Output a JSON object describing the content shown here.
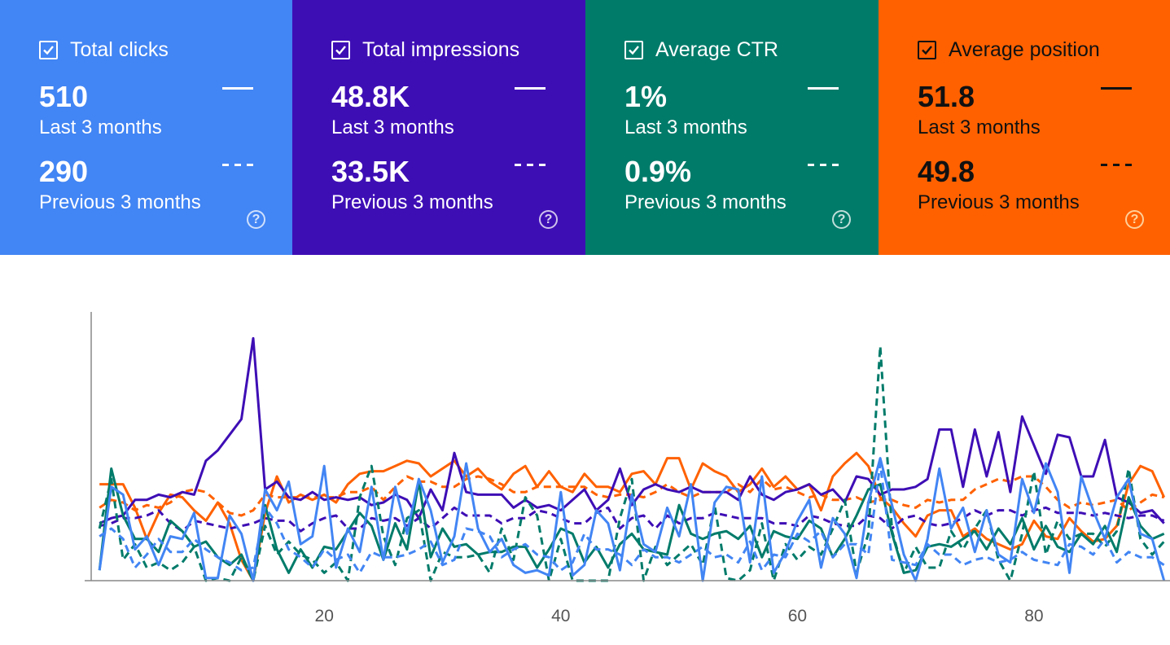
{
  "cards": [
    {
      "title": "Total clicks",
      "current_value": "510",
      "current_period": "Last 3 months",
      "previous_value": "290",
      "previous_period": "Previous 3 months",
      "help": "?",
      "color": "#4285f4",
      "checked": true
    },
    {
      "title": "Total impressions",
      "current_value": "48.8K",
      "current_period": "Last 3 months",
      "previous_value": "33.5K",
      "previous_period": "Previous 3 months",
      "help": "?",
      "color": "#3e0eb5",
      "checked": true
    },
    {
      "title": "Average CTR",
      "current_value": "1%",
      "current_period": "Last 3 months",
      "previous_value": "0.9%",
      "previous_period": "Previous 3 months",
      "help": "?",
      "color": "#007b6a",
      "checked": true
    },
    {
      "title": "Average position",
      "current_value": "51.8",
      "current_period": "Last 3 months",
      "previous_value": "49.8",
      "previous_period": "Previous 3 months",
      "help": "?",
      "color": "#ff6100",
      "checked": true
    }
  ],
  "chart_data": {
    "type": "line",
    "x": [
      1,
      2,
      3,
      4,
      5,
      6,
      7,
      8,
      9,
      10,
      11,
      12,
      13,
      14,
      15,
      16,
      17,
      18,
      19,
      20,
      21,
      22,
      23,
      24,
      25,
      26,
      27,
      28,
      29,
      30,
      31,
      32,
      33,
      34,
      35,
      36,
      37,
      38,
      39,
      40,
      41,
      42,
      43,
      44,
      45,
      46,
      47,
      48,
      49,
      50,
      51,
      52,
      53,
      54,
      55,
      56,
      57,
      58,
      59,
      60,
      61,
      62,
      63,
      64,
      65,
      66,
      67,
      68,
      69,
      70,
      71,
      72,
      73,
      74,
      75,
      76,
      77,
      78,
      79,
      80,
      81,
      82,
      83,
      84,
      85,
      86,
      87,
      88,
      89,
      90,
      91
    ],
    "x_ticks": [
      20,
      40,
      60,
      80
    ],
    "xlim": [
      0.3,
      91.5
    ],
    "ylim": [
      0,
      100
    ],
    "y_axis_labels_shown": false,
    "grid": false,
    "legend": "none",
    "series": [
      {
        "name": "Total clicks",
        "period": "Last 3 months",
        "style": "solid",
        "color": "#4285f4",
        "values": [
          4,
          36,
          33,
          12,
          17,
          6,
          17,
          16,
          26,
          1,
          1,
          25,
          18,
          0,
          35,
          27,
          38,
          14,
          17,
          44,
          5,
          20,
          11,
          36,
          8,
          36,
          18,
          39,
          27,
          7,
          17,
          45,
          20,
          11,
          16,
          6,
          3,
          4,
          2,
          34,
          2,
          6,
          27,
          22,
          4,
          33,
          14,
          11,
          28,
          17,
          37,
          0,
          30,
          36,
          35,
          7,
          40,
          3,
          11,
          23,
          31,
          5,
          24,
          18,
          1,
          30,
          47,
          29,
          10,
          0,
          16,
          43,
          20,
          28,
          11,
          27,
          10,
          7,
          39,
          26,
          45,
          34,
          3,
          40,
          27,
          16,
          32,
          39,
          18,
          16,
          0
        ]
      },
      {
        "name": "Total clicks",
        "period": "Previous 3 months",
        "style": "dashed",
        "color": "#4285f4",
        "values": [
          17,
          20,
          16,
          5,
          10,
          16,
          11,
          11,
          16,
          12,
          9,
          7,
          4,
          5,
          28,
          22,
          12,
          9,
          5,
          12,
          8,
          10,
          3,
          11,
          9,
          9,
          10,
          12,
          15,
          6,
          8,
          20,
          19,
          17,
          9,
          12,
          14,
          10,
          9,
          4,
          7,
          18,
          12,
          12,
          10,
          6,
          12,
          9,
          9,
          7,
          10,
          13,
          9,
          10,
          7,
          15,
          4,
          10,
          9,
          18,
          15,
          19,
          9,
          14,
          14,
          10,
          45,
          8,
          7,
          6,
          14,
          10,
          10,
          6,
          8,
          9,
          7,
          8,
          11,
          8,
          7,
          6,
          14,
          13,
          10,
          16,
          7,
          11,
          9,
          9,
          6
        ]
      },
      {
        "name": "Total impressions",
        "period": "Last 3 months",
        "style": "solid",
        "color": "#3e0eb5",
        "values": [
          22,
          24,
          25,
          31,
          31,
          33,
          32,
          34,
          33,
          46,
          50,
          56,
          62,
          93,
          35,
          38,
          32,
          31,
          34,
          31,
          32,
          31,
          32,
          29,
          30,
          33,
          31,
          24,
          35,
          27,
          49,
          34,
          33,
          33,
          33,
          28,
          31,
          28,
          29,
          27,
          31,
          35,
          27,
          31,
          43,
          29,
          35,
          37,
          35,
          34,
          36,
          34,
          34,
          34,
          31,
          40,
          33,
          31,
          34,
          35,
          37,
          33,
          35,
          30,
          40,
          39,
          33,
          35,
          35,
          36,
          39,
          58,
          58,
          36,
          58,
          40,
          57,
          34,
          63,
          52,
          41,
          56,
          55,
          40,
          40,
          54,
          32,
          30,
          26,
          27,
          22
        ]
      },
      {
        "name": "Total impressions",
        "period": "Previous 3 months",
        "style": "dashed",
        "color": "#3e0eb5",
        "values": [
          21,
          22,
          24,
          24,
          25,
          27,
          22,
          19,
          23,
          22,
          21,
          20,
          21,
          22,
          24,
          23,
          23,
          19,
          22,
          24,
          25,
          20,
          20,
          24,
          23,
          24,
          21,
          24,
          20,
          24,
          28,
          25,
          25,
          25,
          22,
          24,
          24,
          27,
          26,
          24,
          22,
          22,
          26,
          28,
          20,
          24,
          25,
          20,
          25,
          22,
          24,
          24,
          26,
          25,
          24,
          24,
          24,
          22,
          22,
          21,
          25,
          24,
          22,
          21,
          21,
          25,
          24,
          20,
          24,
          25,
          22,
          21,
          22,
          24,
          27,
          25,
          27,
          27,
          25,
          27,
          28,
          26,
          26,
          26,
          25,
          26,
          25,
          24,
          25,
          25,
          23
        ]
      },
      {
        "name": "Average CTR",
        "period": "Last 3 months",
        "style": "solid",
        "color": "#007b6a",
        "values": [
          4,
          43,
          25,
          16,
          16,
          11,
          23,
          19,
          13,
          15,
          9,
          6,
          10,
          0,
          29,
          12,
          3,
          12,
          5,
          13,
          12,
          19,
          26,
          21,
          8,
          22,
          12,
          38,
          9,
          20,
          13,
          14,
          10,
          11,
          11,
          13,
          13,
          5,
          12,
          20,
          18,
          7,
          13,
          5,
          14,
          18,
          12,
          11,
          10,
          29,
          18,
          16,
          18,
          19,
          16,
          21,
          9,
          19,
          17,
          16,
          23,
          20,
          9,
          16,
          25,
          35,
          37,
          18,
          3,
          4,
          13,
          14,
          13,
          16,
          19,
          12,
          20,
          14,
          24,
          12,
          21,
          13,
          11,
          18,
          14,
          21,
          11,
          32,
          21,
          16,
          18
        ]
      },
      {
        "name": "Average CTR",
        "period": "Previous 3 months",
        "style": "dashed",
        "color": "#007b6a",
        "values": [
          20,
          39,
          8,
          14,
          5,
          7,
          4,
          7,
          13,
          0,
          1,
          0,
          9,
          0,
          21,
          10,
          15,
          10,
          8,
          3,
          7,
          0,
          32,
          44,
          17,
          6,
          24,
          27,
          0,
          11,
          9,
          9,
          10,
          3,
          20,
          8,
          32,
          25,
          0,
          16,
          0,
          0,
          0,
          0,
          24,
          39,
          0,
          13,
          6,
          10,
          14,
          6,
          29,
          1,
          0,
          4,
          22,
          0,
          14,
          8,
          13,
          10,
          20,
          31,
          3,
          18,
          90,
          19,
          3,
          13,
          5,
          5,
          19,
          12,
          20,
          27,
          8,
          0,
          18,
          42,
          10,
          23,
          16,
          18,
          18,
          13,
          19,
          43,
          16,
          10,
          15
        ]
      },
      {
        "name": "Average position",
        "period": "Last 3 months",
        "style": "solid",
        "color": "#ff6100",
        "values": [
          37,
          37,
          37,
          28,
          16,
          26,
          33,
          32,
          27,
          23,
          30,
          22,
          8,
          0,
          26,
          40,
          30,
          33,
          31,
          33,
          30,
          37,
          41,
          42,
          42,
          44,
          46,
          45,
          40,
          43,
          46,
          40,
          43,
          38,
          35,
          41,
          44,
          36,
          42,
          36,
          34,
          41,
          36,
          36,
          34,
          41,
          42,
          37,
          47,
          47,
          35,
          45,
          42,
          40,
          34,
          37,
          43,
          36,
          40,
          35,
          37,
          27,
          40,
          45,
          49,
          44,
          32,
          28,
          22,
          17,
          25,
          27,
          27,
          17,
          20,
          16,
          14,
          12,
          14,
          23,
          17,
          16,
          24,
          19,
          15,
          16,
          21,
          37,
          44,
          42,
          32
        ]
      },
      {
        "name": "Average position",
        "period": "Previous 3 months",
        "style": "dashed",
        "color": "#ff6100",
        "values": [
          28,
          31,
          30,
          27,
          29,
          28,
          30,
          34,
          35,
          34,
          30,
          26,
          25,
          27,
          33,
          32,
          32,
          32,
          32,
          32,
          32,
          34,
          34,
          36,
          31,
          36,
          40,
          38,
          38,
          36,
          36,
          39,
          40,
          39,
          37,
          34,
          34,
          36,
          36,
          36,
          36,
          36,
          33,
          32,
          33,
          33,
          32,
          34,
          37,
          34,
          32,
          34,
          34,
          34,
          37,
          34,
          39,
          35,
          36,
          34,
          32,
          33,
          31,
          31,
          32,
          30,
          31,
          31,
          29,
          28,
          31,
          30,
          31,
          31,
          35,
          37,
          39,
          38,
          40,
          40,
          36,
          31,
          28,
          30,
          29,
          30,
          31,
          27,
          30,
          33,
          32
        ]
      }
    ]
  }
}
